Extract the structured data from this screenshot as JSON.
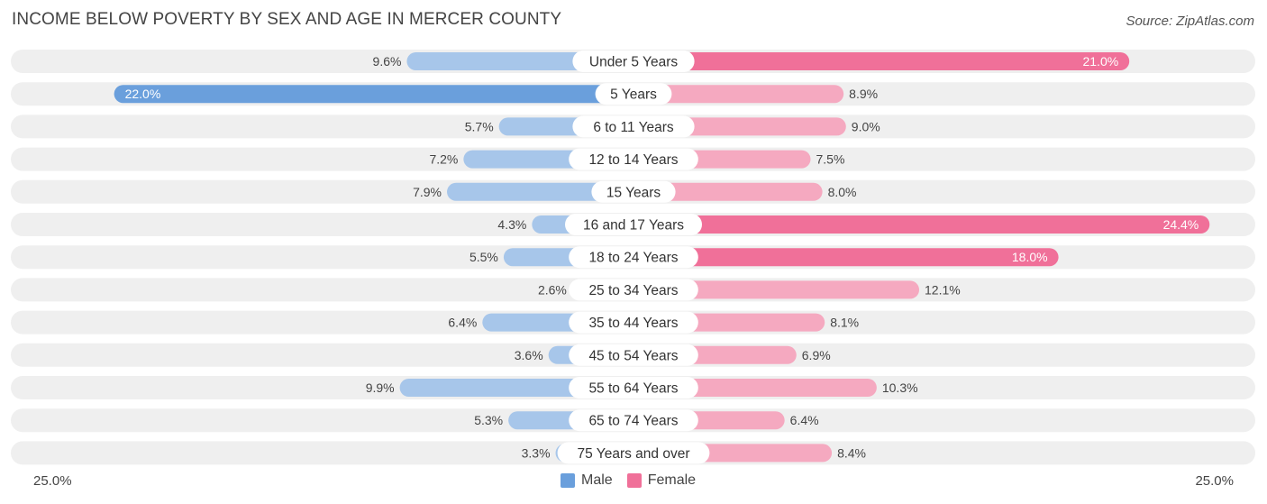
{
  "title": "INCOME BELOW POVERTY BY SEX AND AGE IN MERCER COUNTY",
  "source": "Source: ZipAtlas.com",
  "colors": {
    "male_dark": "#6a9fdc",
    "male_light": "#a7c6ea",
    "female_dark": "#f07099",
    "female_light": "#f5a9c0",
    "row_bg": "#efefef"
  },
  "axis": {
    "left_label": "25.0%",
    "right_label": "25.0%"
  },
  "legend": {
    "male": "Male",
    "female": "Female"
  },
  "chart_data": {
    "type": "bar",
    "orientation": "horizontal-diverging",
    "xlim": [
      0,
      25
    ],
    "categories": [
      "Under 5 Years",
      "5 Years",
      "6 to 11 Years",
      "12 to 14 Years",
      "15 Years",
      "16 and 17 Years",
      "18 to 24 Years",
      "25 to 34 Years",
      "35 to 44 Years",
      "45 to 54 Years",
      "55 to 64 Years",
      "65 to 74 Years",
      "75 Years and over"
    ],
    "series": [
      {
        "name": "Male",
        "values": [
          9.6,
          22.0,
          5.7,
          7.2,
          7.9,
          4.3,
          5.5,
          2.6,
          6.4,
          3.6,
          9.9,
          5.3,
          3.3
        ],
        "labels": [
          "9.6%",
          "22.0%",
          "5.7%",
          "7.2%",
          "7.9%",
          "4.3%",
          "5.5%",
          "2.6%",
          "6.4%",
          "3.6%",
          "9.9%",
          "5.3%",
          "3.3%"
        ]
      },
      {
        "name": "Female",
        "values": [
          21.0,
          8.9,
          9.0,
          7.5,
          8.0,
          24.4,
          18.0,
          12.1,
          8.1,
          6.9,
          10.3,
          6.4,
          8.4
        ],
        "labels": [
          "21.0%",
          "8.9%",
          "9.0%",
          "7.5%",
          "8.0%",
          "24.4%",
          "18.0%",
          "12.1%",
          "8.1%",
          "6.9%",
          "10.3%",
          "6.4%",
          "8.4%"
        ]
      }
    ]
  }
}
